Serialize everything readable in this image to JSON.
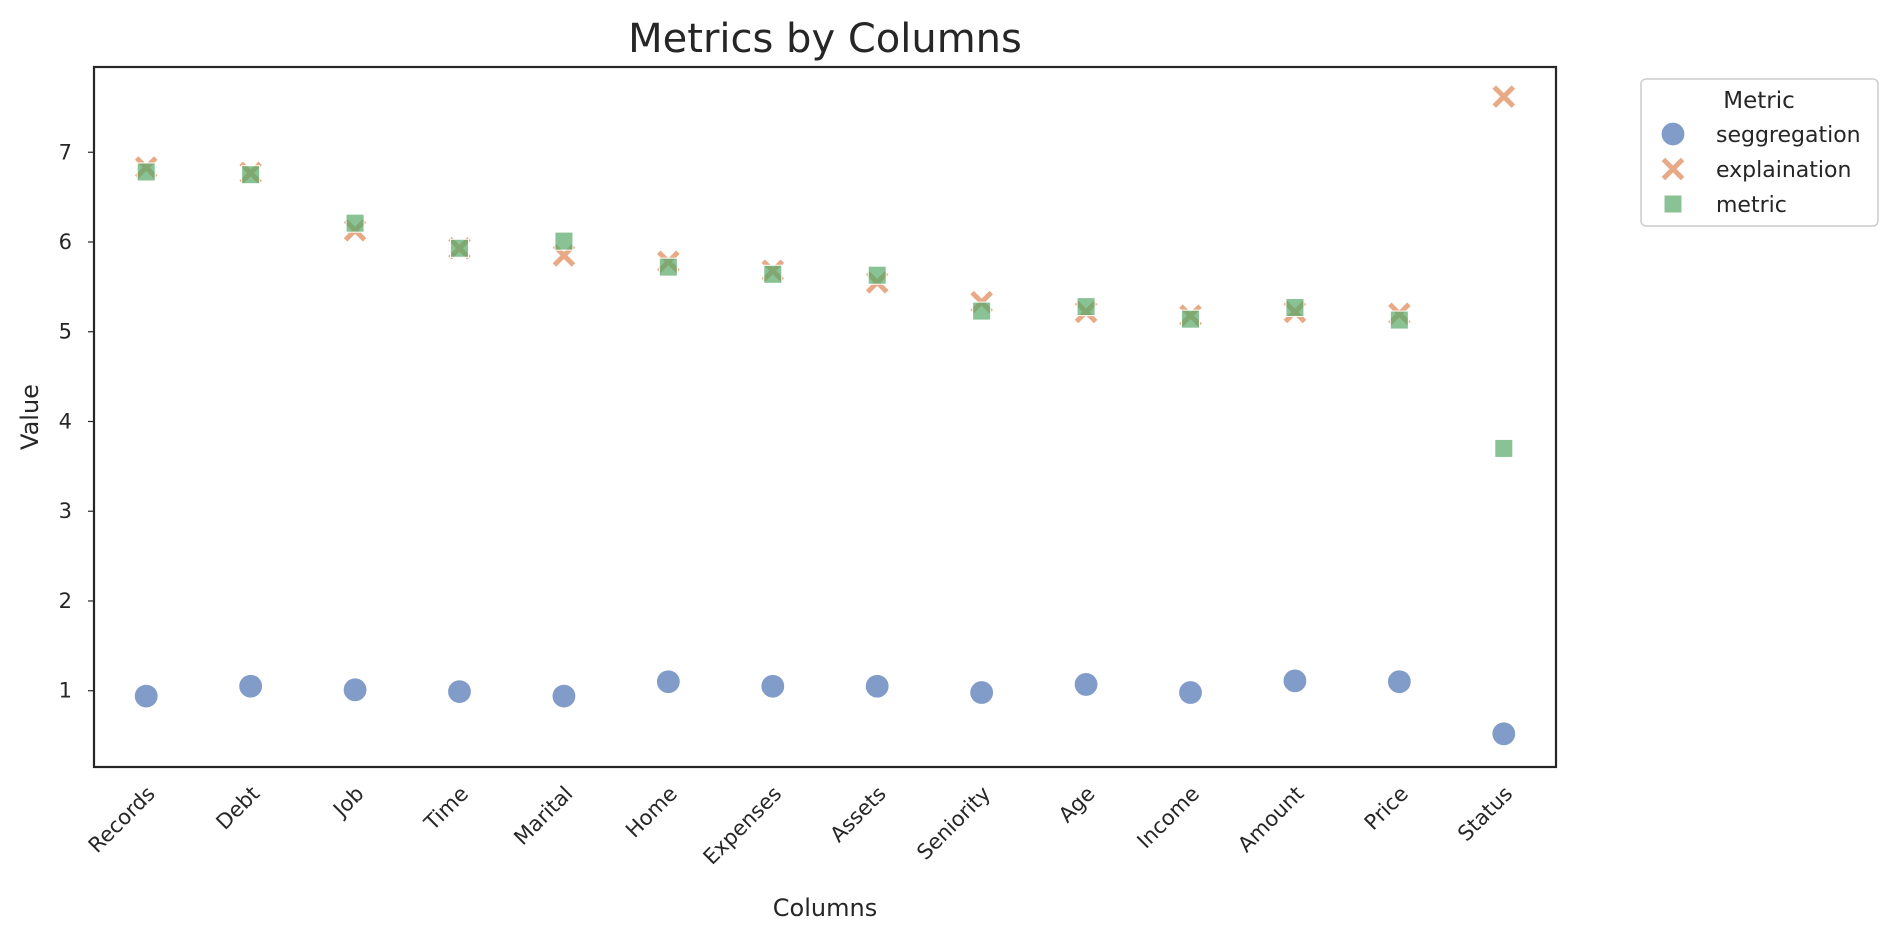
{
  "chart_data": {
    "type": "scatter",
    "title": "Metrics by Columns",
    "xlabel": "Columns",
    "ylabel": "Value",
    "ylim": [
      0.15,
      7.95
    ],
    "yticks": [
      1,
      2,
      3,
      4,
      5,
      6,
      7
    ],
    "grid": false,
    "legend_title": "Metric",
    "legend_position": "outside-top-right",
    "categories": [
      "Records",
      "Debt",
      "Job",
      "Time",
      "Marital",
      "Home",
      "Expenses",
      "Assets",
      "Seniority",
      "Age",
      "Income",
      "Amount",
      "Price",
      "Status"
    ],
    "series": [
      {
        "name": "seggregation",
        "marker": "circle",
        "color": "#4c72b0",
        "values": [
          0.94,
          1.05,
          1.01,
          0.99,
          0.94,
          1.1,
          1.05,
          1.05,
          0.98,
          1.07,
          0.98,
          1.11,
          1.1,
          0.52
        ]
      },
      {
        "name": "explaination",
        "marker": "x",
        "color": "#dd8452",
        "values": [
          6.83,
          6.77,
          6.13,
          5.93,
          5.85,
          5.78,
          5.68,
          5.55,
          5.33,
          5.22,
          5.18,
          5.22,
          5.2,
          7.62
        ]
      },
      {
        "name": "metric",
        "marker": "square",
        "color": "#55a868",
        "values": [
          6.78,
          6.75,
          6.21,
          5.93,
          6.01,
          5.72,
          5.64,
          5.63,
          5.23,
          5.28,
          5.14,
          5.27,
          5.13,
          3.7
        ]
      }
    ]
  }
}
